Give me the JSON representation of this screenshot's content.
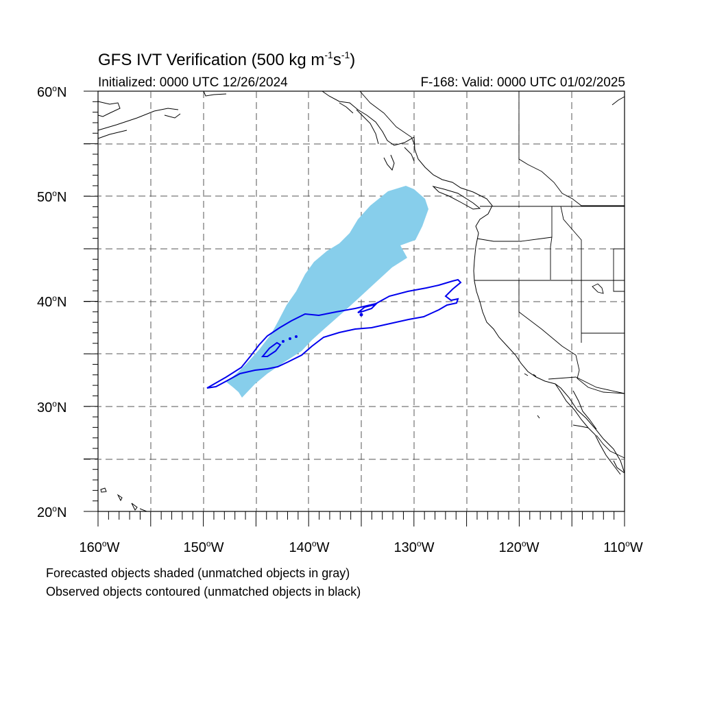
{
  "title": {
    "prefix": "GFS IVT Verification (500 kg m",
    "exp1": "-1",
    "middle": "s",
    "exp2": "-1",
    "suffix": ")"
  },
  "init_text": "Initialized: 0000 UTC 12/26/2024",
  "valid_text": "F-168: Valid: 0000 UTC 01/02/2025",
  "lat_labels": [
    "60",
    "50",
    "40",
    "30",
    "20"
  ],
  "lat_hemisphere": "N",
  "lon_labels": [
    "160",
    "150",
    "140",
    "130",
    "120",
    "110"
  ],
  "lon_hemisphere": "W",
  "degree_symbol": "o",
  "footnotes": [
    "Forecasted objects shaded (unmatched objects in gray)",
    "Observed objects contoured (unmatched objects in black)"
  ],
  "colors": {
    "forecast_fill": "#87ceeb",
    "observed_contour": "#0000ee",
    "coastline": "#000000",
    "gridline": "#555555"
  },
  "map_extent": {
    "lon_min": -160,
    "lon_max": -110,
    "lat_min": 20,
    "lat_max": 60
  },
  "grid": {
    "dashed": true,
    "lon_step": 5,
    "lat_step": 5
  }
}
